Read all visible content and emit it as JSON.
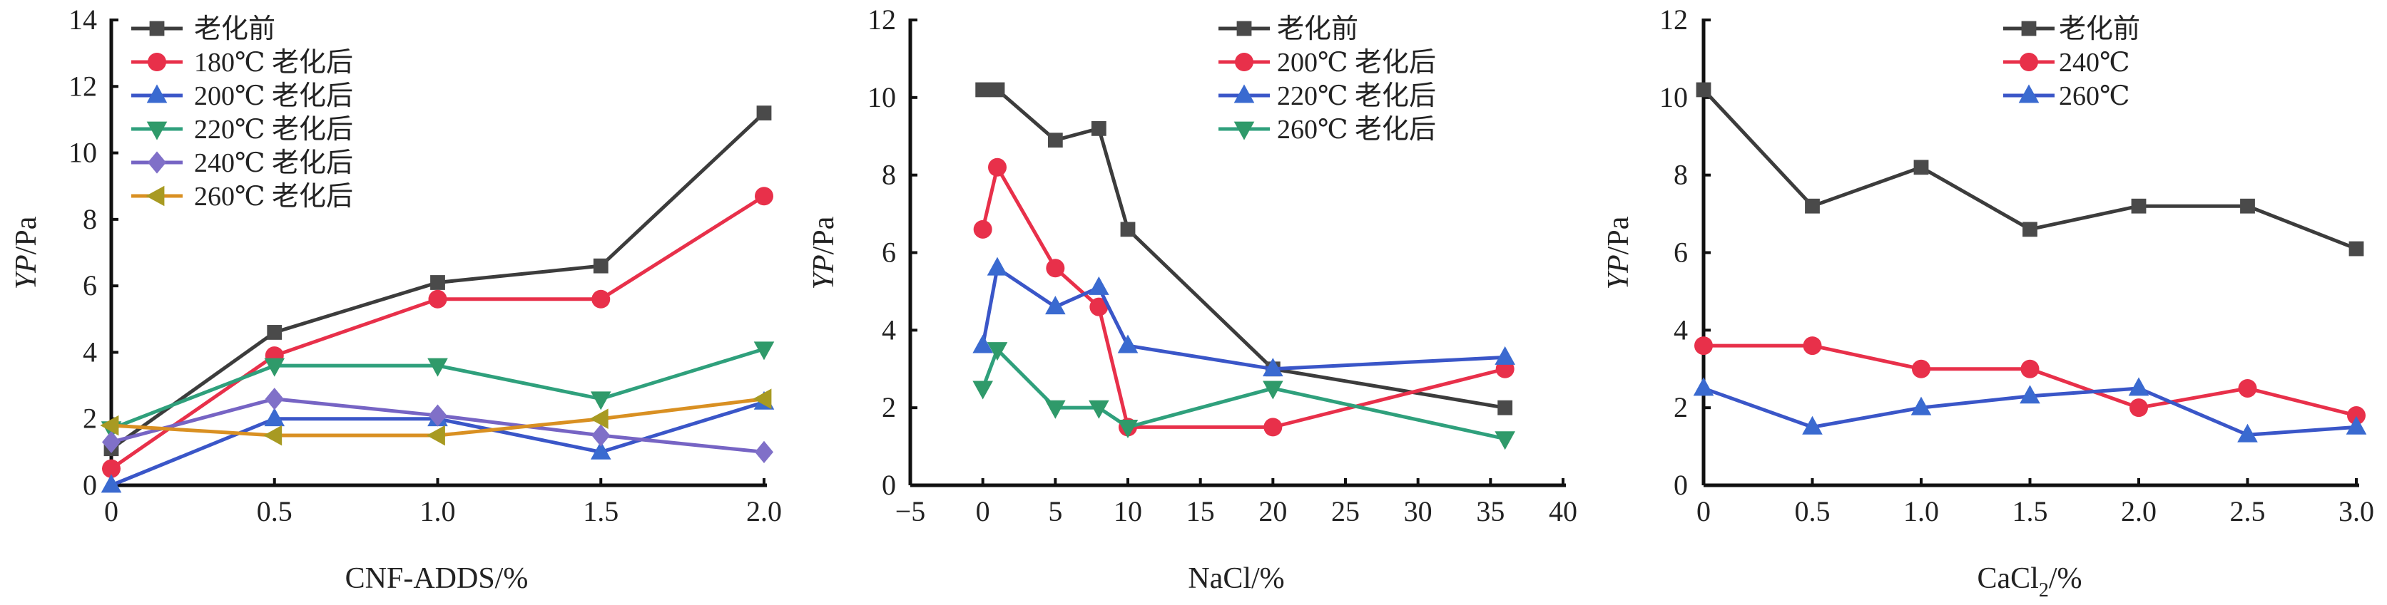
{
  "chart_data": [
    {
      "type": "line",
      "xlabel": "CNF-ADDS/%",
      "ylabel_italic": "YP",
      "ylabel_rest": "/Pa",
      "xlim": [
        0,
        2.0
      ],
      "ylim": [
        0,
        14
      ],
      "xticks": [
        "0",
        "0.5",
        "1.0",
        "1.5",
        "2.0"
      ],
      "xtick_values": [
        0,
        0.5,
        1.0,
        1.5,
        2.0
      ],
      "yticks": [
        0,
        2,
        4,
        6,
        8,
        10,
        12,
        14
      ],
      "grid": false,
      "legend": "top-left",
      "x": [
        0,
        0.5,
        1.0,
        1.5,
        2.0
      ],
      "series": [
        {
          "name": "老化前",
          "marker": "square",
          "color": "#3c3c3c",
          "marker_color": "#4a4a4a",
          "values": [
            1.1,
            4.6,
            6.1,
            6.6,
            11.2
          ]
        },
        {
          "name": "180℃ 老化后",
          "marker": "circle",
          "color": "#e8304a",
          "marker_color": "#e8304a",
          "values": [
            0.5,
            3.9,
            5.6,
            5.6,
            8.7
          ]
        },
        {
          "name": "200℃ 老化后",
          "marker": "triangle-up",
          "color": "#3a56c8",
          "marker_color": "#3a6ad0",
          "values": [
            0,
            2.0,
            2.0,
            1.0,
            2.5
          ]
        },
        {
          "name": "220℃ 老化后",
          "marker": "triangle-down",
          "color": "#2fa07c",
          "marker_color": "#2f9a6a",
          "values": [
            1.7,
            3.6,
            3.6,
            2.6,
            4.1
          ]
        },
        {
          "name": "240℃ 老化后",
          "marker": "diamond",
          "color": "#7664c4",
          "marker_color": "#8070c8",
          "values": [
            1.3,
            2.6,
            2.1,
            1.5,
            1.0
          ]
        },
        {
          "name": "260℃ 老化后",
          "marker": "triangle-left",
          "color": "#d99022",
          "marker_color": "#a89a22",
          "values": [
            1.8,
            1.5,
            1.5,
            2.0,
            2.6
          ]
        }
      ]
    },
    {
      "type": "line",
      "xlabel": "NaCl/%",
      "ylabel_italic": "YP",
      "ylabel_rest": "/Pa",
      "xlim": [
        -5,
        40
      ],
      "ylim": [
        0,
        12
      ],
      "xticks": [
        "−5",
        "0",
        "5",
        "10",
        "15",
        "20",
        "25",
        "30",
        "35",
        "40"
      ],
      "xtick_values": [
        -5,
        0,
        5,
        10,
        15,
        20,
        25,
        30,
        35,
        40
      ],
      "yticks": [
        0,
        2,
        4,
        6,
        8,
        10,
        12
      ],
      "grid": false,
      "legend": "top-right",
      "x": [
        0,
        1,
        5,
        8,
        10,
        20,
        36
      ],
      "series": [
        {
          "name": "老化前",
          "marker": "square",
          "color": "#3c3c3c",
          "marker_color": "#4a4a4a",
          "values": [
            10.2,
            10.2,
            8.9,
            9.2,
            6.6,
            3.0,
            2.0
          ]
        },
        {
          "name": "200℃ 老化后",
          "marker": "circle",
          "color": "#e8304a",
          "marker_color": "#e8304a",
          "values": [
            6.6,
            8.2,
            5.6,
            4.6,
            1.5,
            1.5,
            3.0
          ]
        },
        {
          "name": "220℃ 老化后",
          "marker": "triangle-up",
          "color": "#3a56c8",
          "marker_color": "#3a6ad0",
          "values": [
            3.6,
            5.6,
            4.6,
            5.1,
            3.6,
            3.0,
            3.3
          ]
        },
        {
          "name": "260℃ 老化后",
          "marker": "triangle-down",
          "color": "#2fa07c",
          "marker_color": "#2f9a6a",
          "values": [
            2.5,
            3.5,
            2.0,
            2.0,
            1.5,
            2.5,
            1.2
          ]
        }
      ]
    },
    {
      "type": "line",
      "xlabel_main": "CaCl",
      "xlabel_sub": "2",
      "xlabel_tail": "/%",
      "ylabel_italic": "YP",
      "ylabel_rest": "/Pa",
      "xlim": [
        0,
        3.0
      ],
      "ylim": [
        0,
        12
      ],
      "xticks": [
        "0",
        "0.5",
        "1.0",
        "1.5",
        "2.0",
        "2.5",
        "3.0"
      ],
      "xtick_values": [
        0,
        0.5,
        1.0,
        1.5,
        2.0,
        2.5,
        3.0
      ],
      "yticks": [
        0,
        2,
        4,
        6,
        8,
        10,
        12
      ],
      "grid": false,
      "legend": "top-right",
      "x": [
        0,
        0.5,
        1.0,
        1.5,
        2.0,
        2.5,
        3.0
      ],
      "series": [
        {
          "name": "老化前",
          "marker": "square",
          "color": "#3c3c3c",
          "marker_color": "#4a4a4a",
          "values": [
            10.2,
            7.2,
            8.2,
            6.6,
            7.2,
            7.2,
            6.1
          ]
        },
        {
          "name": "240℃",
          "marker": "circle",
          "color": "#e8304a",
          "marker_color": "#e8304a",
          "values": [
            3.6,
            3.6,
            3.0,
            3.0,
            2.0,
            2.5,
            1.8
          ]
        },
        {
          "name": "260℃",
          "marker": "triangle-up",
          "color": "#3a56c8",
          "marker_color": "#3a6ad0",
          "values": [
            2.5,
            1.5,
            2.0,
            2.3,
            2.5,
            1.3,
            1.5
          ]
        }
      ]
    }
  ]
}
